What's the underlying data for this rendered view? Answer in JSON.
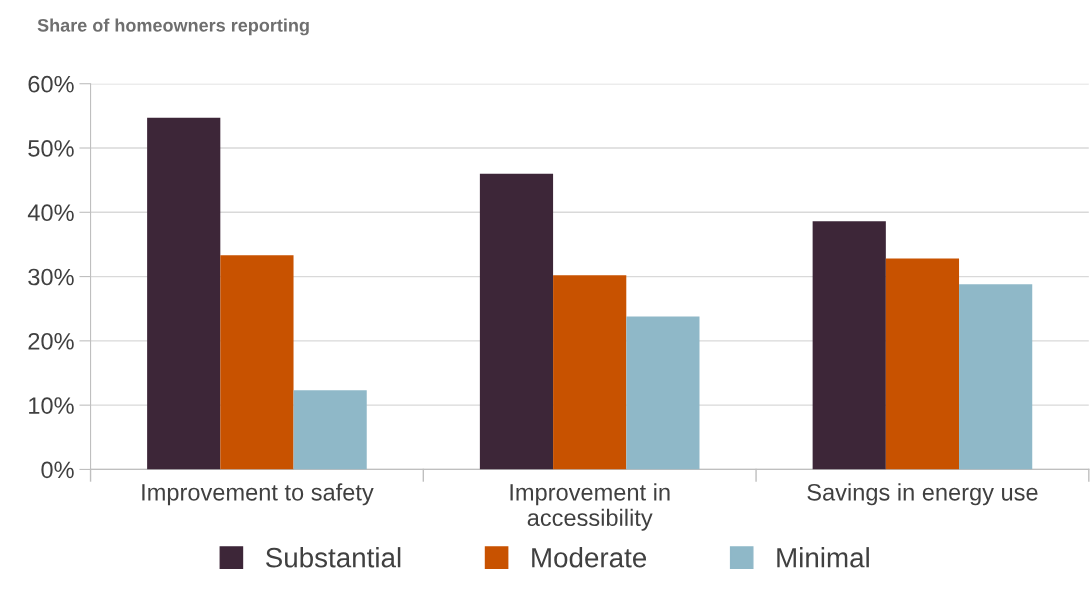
{
  "chart_data": {
    "type": "bar",
    "title": "Share of homeowners reporting",
    "categories": [
      "Improvement to safety",
      "Improvement in\naccessibility",
      "Savings in energy use"
    ],
    "series": [
      {
        "name": "Substantial",
        "color": "#3d2638",
        "values": [
          54.7,
          46.0,
          38.6
        ]
      },
      {
        "name": "Moderate",
        "color": "#c85200",
        "values": [
          33.3,
          30.2,
          32.8
        ]
      },
      {
        "name": "Minimal",
        "color": "#8fb8c8",
        "values": [
          12.3,
          23.8,
          28.8
        ]
      }
    ],
    "ylim": [
      0,
      60
    ],
    "yticks": [
      {
        "value": 0,
        "label": "0%"
      },
      {
        "value": 10,
        "label": "10%"
      },
      {
        "value": 20,
        "label": "20%"
      },
      {
        "value": 30,
        "label": "30%"
      },
      {
        "value": 40,
        "label": "40%"
      },
      {
        "value": 50,
        "label": "50%"
      },
      {
        "value": 60,
        "label": "60%"
      }
    ],
    "grid": "y",
    "legend": "bottom"
  }
}
